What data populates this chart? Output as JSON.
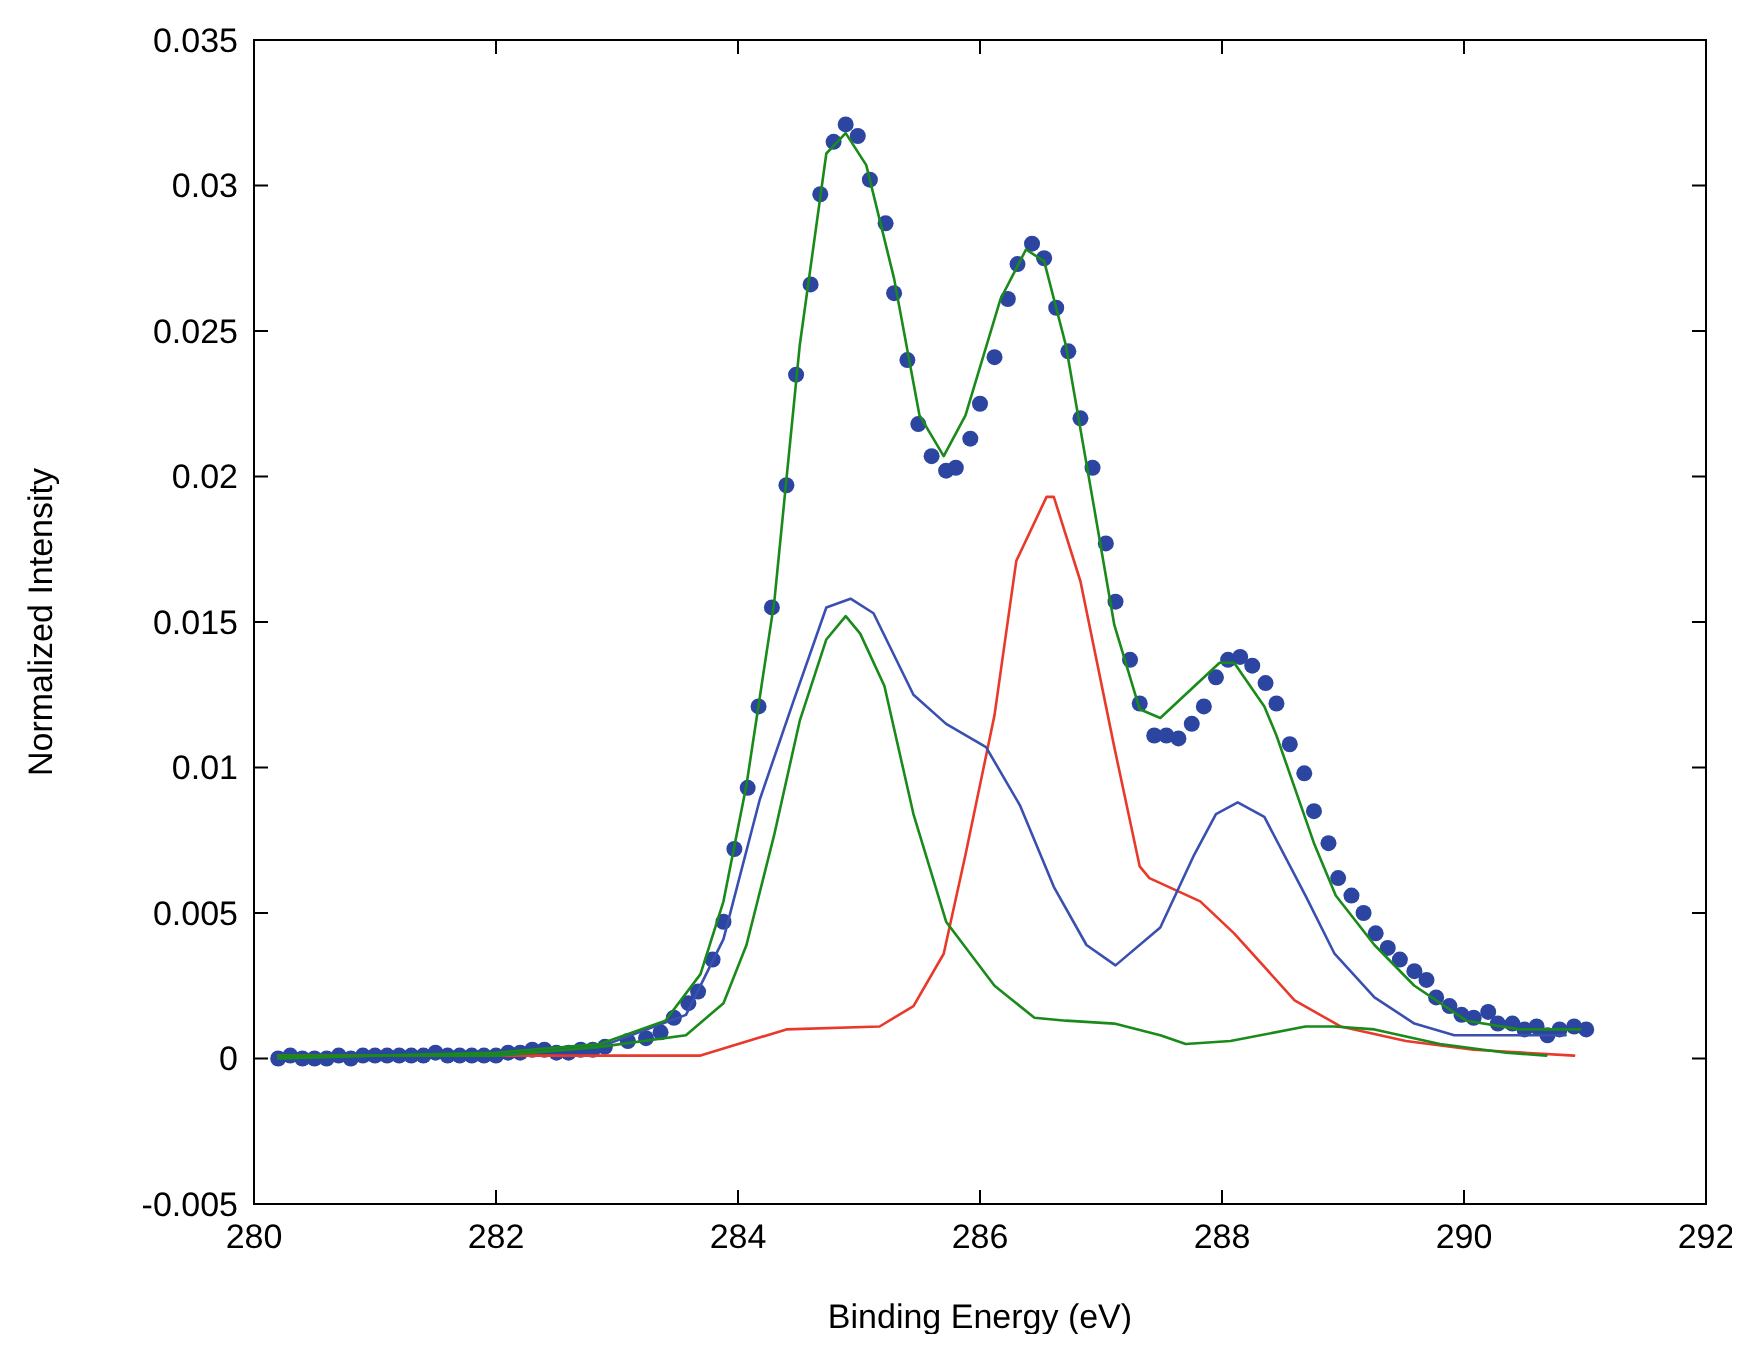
{
  "chart_data": {
    "type": "line",
    "xlabel": "Binding Energy (eV)",
    "ylabel": "Normalized Intensity",
    "xlim": [
      280,
      292
    ],
    "xticks": [
      280,
      282,
      284,
      286,
      288,
      290,
      292
    ],
    "ylim": [
      -0.005,
      0.035
    ],
    "yticks": [
      -0.005,
      0,
      0.005,
      0.01,
      0.015,
      0.02,
      0.025,
      0.03,
      0.035
    ],
    "grid": false,
    "series": [
      {
        "color": "#e8392a",
        "x": [
          280.2,
          281,
          282,
          282.86,
          283.69,
          284.4,
          285.17,
          285.45,
          285.7,
          285.88,
          286.12,
          286.3,
          286.55,
          286.61,
          286.83,
          287.11,
          287.32,
          287.4,
          287.82,
          288.1,
          288.6,
          288.98,
          289.52,
          290.08,
          290.91
        ],
        "values": [
          0.0001,
          0.0001,
          0.0001,
          0.0001,
          0.0001,
          0.001,
          0.0011,
          0.0018,
          0.0036,
          0.007,
          0.0118,
          0.0171,
          0.0193,
          0.0193,
          0.0164,
          0.0107,
          0.0066,
          0.0062,
          0.0054,
          0.0043,
          0.002,
          0.0011,
          0.0006,
          0.0003,
          0.0001
        ]
      },
      {
        "color": "#3a50b0",
        "x": [
          280.2,
          281,
          282,
          282.86,
          283.57,
          283.88,
          284.18,
          284.46,
          284.73,
          284.93,
          285.12,
          285.45,
          285.72,
          286.05,
          286.33,
          286.61,
          286.88,
          287.12,
          287.49,
          287.77,
          287.95,
          288.13,
          288.35,
          288.69,
          288.93,
          289.26,
          289.59,
          289.92,
          290.35,
          290.84
        ],
        "values": [
          0,
          0.0001,
          0.0001,
          0.0004,
          0.0015,
          0.0041,
          0.0089,
          0.0123,
          0.0155,
          0.0158,
          0.0153,
          0.0125,
          0.0115,
          0.0107,
          0.0087,
          0.0059,
          0.0039,
          0.0032,
          0.0045,
          0.007,
          0.0084,
          0.0088,
          0.0083,
          0.0056,
          0.0036,
          0.0021,
          0.0012,
          0.0008,
          0.0008,
          0.0008
        ]
      },
      {
        "color": "#1a8a1a",
        "x": [
          280.2,
          281,
          282,
          282.86,
          283.57,
          283.88,
          284.07,
          284.3,
          284.51,
          284.73,
          284.89,
          285.01,
          285.21,
          285.45,
          285.72,
          286.12,
          286.45,
          286.71,
          287.11,
          287.49,
          287.7,
          288.07,
          288.69,
          288.93,
          289.26,
          289.8,
          290.35,
          290.68
        ],
        "values": [
          0,
          0.0001,
          0.0001,
          0.0004,
          0.0008,
          0.0019,
          0.0039,
          0.0077,
          0.0116,
          0.0144,
          0.0152,
          0.0146,
          0.0128,
          0.0084,
          0.0047,
          0.0025,
          0.0014,
          0.0013,
          0.0012,
          0.0008,
          0.0005,
          0.0006,
          0.0011,
          0.0011,
          0.001,
          0.0005,
          0.0002,
          0.0001
        ]
      },
      {
        "color": "#1a8a1a",
        "x": [
          280.2,
          281,
          282,
          282.86,
          283.4,
          283.69,
          283.88,
          284.07,
          284.3,
          284.51,
          284.73,
          284.89,
          285.06,
          285.29,
          285.5,
          285.7,
          285.88,
          286.17,
          286.38,
          286.53,
          286.71,
          286.94,
          287.11,
          287.32,
          287.49,
          287.98,
          288.1,
          288.35,
          288.45,
          288.76,
          288.94,
          289.26,
          289.59,
          290.02,
          290.46,
          290.96
        ],
        "values": [
          0.0001,
          0.0001,
          0.0002,
          0.0005,
          0.0013,
          0.0029,
          0.0054,
          0.0094,
          0.0157,
          0.0245,
          0.0311,
          0.0318,
          0.0307,
          0.0268,
          0.0221,
          0.0207,
          0.0221,
          0.0261,
          0.0278,
          0.0274,
          0.0245,
          0.019,
          0.0149,
          0.012,
          0.0117,
          0.0136,
          0.0136,
          0.0121,
          0.0111,
          0.0074,
          0.0056,
          0.0039,
          0.0025,
          0.0013,
          0.001,
          0.001
        ]
      },
      {
        "type": "scatter",
        "color": "#2b45a0",
        "x": [
          280.2,
          280.3,
          280.4,
          280.5,
          280.6,
          280.7,
          280.8,
          280.9,
          281,
          281.1,
          281.2,
          281.3,
          281.4,
          281.5,
          281.6,
          281.7,
          281.8,
          281.9,
          282,
          282.1,
          282.2,
          282.3,
          282.4,
          282.5,
          282.6,
          282.7,
          282.8,
          282.9,
          283.09,
          283.24,
          283.36,
          283.47,
          283.59,
          283.67,
          283.79,
          283.88,
          283.97,
          284.08,
          284.17,
          284.28,
          284.4,
          284.48,
          284.6,
          284.68,
          284.79,
          284.89,
          284.99,
          285.09,
          285.22,
          285.29,
          285.4,
          285.49,
          285.6,
          285.72,
          285.8,
          285.92,
          286,
          286.12,
          286.23,
          286.31,
          286.43,
          286.53,
          286.63,
          286.73,
          286.83,
          286.93,
          287.04,
          287.12,
          287.24,
          287.32,
          287.44,
          287.54,
          287.64,
          287.75,
          287.85,
          287.95,
          288.05,
          288.15,
          288.25,
          288.36,
          288.45,
          288.56,
          288.68,
          288.76,
          288.88,
          288.96,
          289.07,
          289.17,
          289.27,
          289.37,
          289.47,
          289.59,
          289.69,
          289.77,
          289.88,
          289.98,
          290.08,
          290.2,
          290.28,
          290.4,
          290.5,
          290.6,
          290.69,
          290.79,
          290.91,
          291.01
        ],
        "values": [
          0,
          0.0001,
          0,
          0,
          0,
          0.0001,
          0,
          0.0001,
          0.0001,
          0.0001,
          0.0001,
          0.0001,
          0.0001,
          0.0002,
          0.0001,
          0.0001,
          0.0001,
          0.0001,
          0.0001,
          0.0002,
          0.0002,
          0.0003,
          0.0003,
          0.0002,
          0.0002,
          0.0003,
          0.0003,
          0.0004,
          0.0006,
          0.0007,
          0.0009,
          0.0014,
          0.0019,
          0.0023,
          0.0034,
          0.0047,
          0.0072,
          0.0093,
          0.0121,
          0.0155,
          0.0197,
          0.0235,
          0.0266,
          0.0297,
          0.0315,
          0.0321,
          0.0317,
          0.0302,
          0.0287,
          0.0263,
          0.024,
          0.0218,
          0.0207,
          0.0202,
          0.0203,
          0.0213,
          0.0225,
          0.0241,
          0.0261,
          0.0273,
          0.028,
          0.0275,
          0.0258,
          0.0243,
          0.022,
          0.0203,
          0.0177,
          0.0157,
          0.0137,
          0.0122,
          0.0111,
          0.0111,
          0.011,
          0.0115,
          0.0121,
          0.0131,
          0.0137,
          0.0138,
          0.0135,
          0.0129,
          0.0122,
          0.0108,
          0.0098,
          0.0085,
          0.0074,
          0.0062,
          0.0056,
          0.005,
          0.0043,
          0.0038,
          0.0034,
          0.003,
          0.0027,
          0.0021,
          0.0018,
          0.0015,
          0.0014,
          0.0016,
          0.0012,
          0.0012,
          0.001,
          0.0011,
          0.0008,
          0.001,
          0.0011,
          0.001
        ]
      }
    ]
  }
}
